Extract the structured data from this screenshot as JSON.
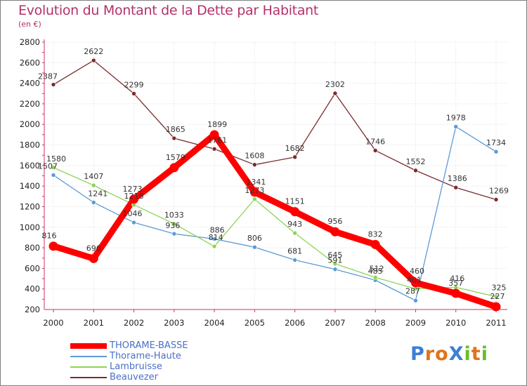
{
  "title": "Evolution du Montant de la Dette par Habitant",
  "unit": "(en €)",
  "logo": {
    "text": "ProXiti",
    "letters": [
      "P",
      "r",
      "o",
      "X",
      "i",
      "t",
      "i"
    ],
    "colors": [
      "#3d7fd4",
      "#e0731a",
      "#e0731a",
      "#3d7fd4",
      "#6bbd2a",
      "#e0731a",
      "#6bbd2a"
    ]
  },
  "chart_data": {
    "type": "line",
    "title": "Evolution du Montant de la Dette par Habitant",
    "ylabel": "(en €)",
    "xlabel": "",
    "x": [
      "2000",
      "2001",
      "2002",
      "2003",
      "2004",
      "2005",
      "2006",
      "2007",
      "2008",
      "2009",
      "2010",
      "2011"
    ],
    "yticks": [
      "200",
      "400",
      "600",
      "800",
      "1000",
      "1200",
      "1400",
      "1600",
      "1800",
      "2000",
      "2200",
      "2400",
      "2600",
      "2800"
    ],
    "ylim": [
      200,
      2800
    ],
    "grid": true,
    "legend": "bottom-left",
    "series": [
      {
        "name": "Beauvezer",
        "color": "#7b2b2b",
        "values": [
          2387,
          2622,
          2299,
          1865,
          1761,
          1608,
          1682,
          2302,
          1746,
          1552,
          1386,
          1269
        ],
        "labels": [
          "2387",
          "2622",
          "2299",
          "1865",
          "1761",
          "1608",
          "1682",
          "2302",
          "1746",
          "1552",
          "1386",
          "1269"
        ]
      },
      {
        "name": "Thorame-Haute",
        "color": "#5b9bd5",
        "values": [
          1507,
          1241,
          1046,
          936,
          886,
          806,
          681,
          591,
          485,
          287,
          1978,
          1734
        ],
        "labels": [
          "1507",
          "1241",
          "1046",
          "936",
          "886",
          "806",
          "681",
          "591",
          "485",
          "287",
          "1978",
          "1734"
        ]
      },
      {
        "name": "Lambruisse",
        "color": "#8ed354",
        "values": [
          1580,
          1407,
          1218,
          1033,
          814,
          1273,
          943,
          645,
          512,
          401,
          416,
          325
        ],
        "labels": [
          "1580",
          "1407",
          "1218",
          "1033",
          "814",
          "1273",
          "943",
          "645",
          "512",
          "401",
          "416",
          "325"
        ]
      },
      {
        "name": "THORAME-BASSE",
        "color": "#ff0000",
        "values": [
          816,
          696,
          1273,
          1579,
          1899,
          1341,
          1151,
          956,
          832,
          460,
          357,
          227
        ],
        "labels": [
          "816",
          "696",
          "1273",
          "1579",
          "1899",
          "1341",
          "1151",
          "956",
          "832",
          "460",
          "357",
          "227"
        ]
      }
    ],
    "legend_entries": [
      "THORAME-BASSE",
      "Thorame-Haute",
      "Lambruisse",
      "Beauvezer"
    ]
  }
}
